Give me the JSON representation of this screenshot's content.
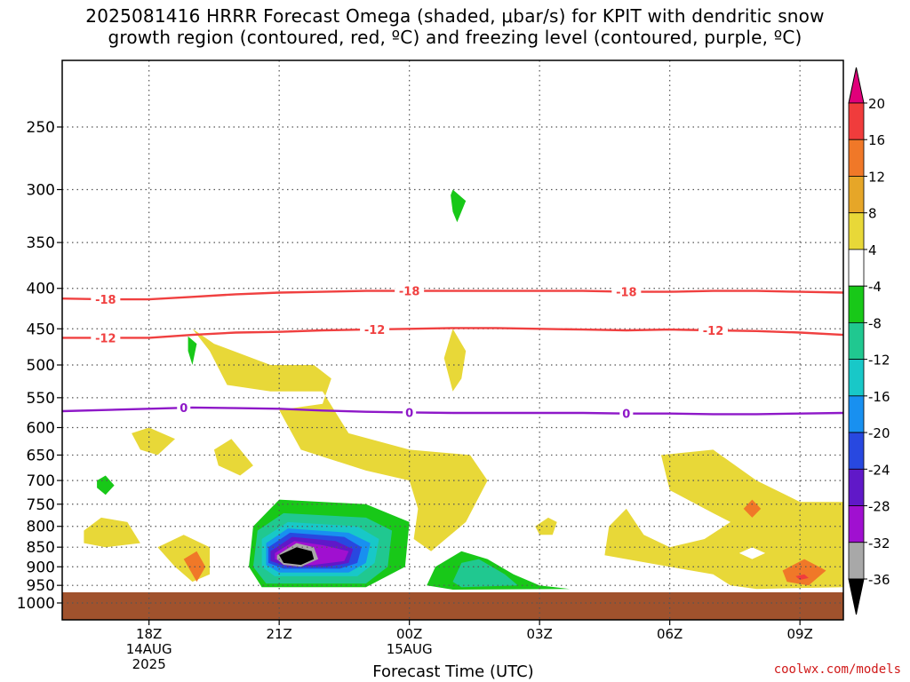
{
  "title": {
    "line1": "2025081416 HRRR Forecast Omega (shaded, μbar/s) for KPIT with dendritic snow",
    "line2": "growth region (contoured, red, ºC) and freezing level (contoured, purple, ºC)"
  },
  "credit": "coolwx.com/models",
  "chart_data": {
    "type": "heatmap",
    "xlabel": "Forecast Time (UTC)",
    "ylabel": "",
    "x_ticks": [
      {
        "hour": 18,
        "label": "18Z",
        "sub": [
          "14AUG",
          "2025"
        ]
      },
      {
        "hour": 21,
        "label": "21Z",
        "sub": []
      },
      {
        "hour": 24,
        "label": "00Z",
        "sub": [
          "15AUG"
        ]
      },
      {
        "hour": 27,
        "label": "03Z",
        "sub": []
      },
      {
        "hour": 30,
        "label": "06Z",
        "sub": []
      },
      {
        "hour": 33,
        "label": "09Z",
        "sub": []
      }
    ],
    "xlim_hours": [
      16,
      34
    ],
    "y_scale": "log-pressure",
    "ylim_mb": [
      1000,
      200
    ],
    "y_ticks": [
      250,
      300,
      350,
      400,
      450,
      500,
      550,
      600,
      650,
      700,
      750,
      800,
      850,
      900,
      950,
      1000
    ],
    "grid": true,
    "colorbar": {
      "labels": [
        "20",
        "16",
        "12",
        "8",
        "4",
        "-4",
        "-8",
        "-12",
        "-16",
        "-20",
        "-24",
        "-28",
        "-32",
        "-36"
      ],
      "colors": [
        "#e0007a",
        "#f03c3c",
        "#f07828",
        "#e6a628",
        "#e8d838",
        "#ffffff",
        "#18c818",
        "#20c890",
        "#18c8c8",
        "#1890f0",
        "#2848e0",
        "#6018c8",
        "#a010d0",
        "#a8a8a8",
        "#000000"
      ]
    },
    "contours": [
      {
        "kind": "dgz",
        "color": "#f04040",
        "label": "-18",
        "label_hours": [
          17.0,
          24.0,
          29.0
        ],
        "points": [
          [
            16,
            412
          ],
          [
            17,
            413
          ],
          [
            18,
            413
          ],
          [
            19,
            410
          ],
          [
            20,
            407
          ],
          [
            21,
            405
          ],
          [
            22,
            404
          ],
          [
            23,
            403
          ],
          [
            24,
            403
          ],
          [
            25,
            403
          ],
          [
            26,
            403
          ],
          [
            27,
            403
          ],
          [
            28,
            403
          ],
          [
            29,
            404
          ],
          [
            30,
            404
          ],
          [
            31,
            403
          ],
          [
            32,
            403
          ],
          [
            33,
            404
          ],
          [
            34,
            405
          ]
        ]
      },
      {
        "kind": "dgz",
        "color": "#f04040",
        "label": "-12",
        "label_hours": [
          17.0,
          23.2,
          31.0
        ],
        "points": [
          [
            16,
            462
          ],
          [
            17,
            462
          ],
          [
            18,
            462
          ],
          [
            19,
            458
          ],
          [
            20,
            455
          ],
          [
            21,
            454
          ],
          [
            22,
            452
          ],
          [
            23,
            451
          ],
          [
            24,
            450
          ],
          [
            25,
            449
          ],
          [
            26,
            449
          ],
          [
            27,
            450
          ],
          [
            28,
            451
          ],
          [
            29,
            452
          ],
          [
            30,
            451
          ],
          [
            31,
            452
          ],
          [
            32,
            453
          ],
          [
            33,
            455
          ],
          [
            34,
            458
          ]
        ]
      },
      {
        "kind": "freezing",
        "color": "#8e18c8",
        "label": "0",
        "label_hours": [
          18.8,
          24.0,
          29.0
        ],
        "points": [
          [
            16,
            572
          ],
          [
            17,
            570
          ],
          [
            18,
            568
          ],
          [
            19,
            566
          ],
          [
            20,
            567
          ],
          [
            21,
            568
          ],
          [
            22,
            571
          ],
          [
            23,
            573
          ],
          [
            24,
            574
          ],
          [
            25,
            575
          ],
          [
            26,
            575
          ],
          [
            27,
            575
          ],
          [
            28,
            575
          ],
          [
            29,
            576
          ],
          [
            30,
            576
          ],
          [
            31,
            577
          ],
          [
            32,
            577
          ],
          [
            33,
            576
          ],
          [
            34,
            575
          ]
        ]
      }
    ],
    "regions": [
      {
        "color": "#e8d838",
        "points": [
          [
            19.0,
            450
          ],
          [
            19.5,
            470
          ],
          [
            20.8,
            500
          ],
          [
            21.8,
            500
          ],
          [
            22.2,
            520
          ],
          [
            22.0,
            560
          ],
          [
            21.0,
            570
          ],
          [
            21.5,
            640
          ],
          [
            23.0,
            680
          ],
          [
            24.0,
            700
          ],
          [
            24.2,
            760
          ],
          [
            24.1,
            830
          ],
          [
            24.5,
            860
          ],
          [
            25.3,
            790
          ],
          [
            25.8,
            700
          ],
          [
            25.4,
            650
          ],
          [
            24.0,
            640
          ],
          [
            22.6,
            610
          ],
          [
            22.0,
            540
          ],
          [
            20.8,
            540
          ],
          [
            19.8,
            530
          ],
          [
            19.4,
            480
          ]
        ]
      },
      {
        "color": "#e8d838",
        "points": [
          [
            17.6,
            610
          ],
          [
            18.0,
            600
          ],
          [
            18.6,
            620
          ],
          [
            18.2,
            650
          ],
          [
            17.8,
            640
          ]
        ]
      },
      {
        "color": "#e8d838",
        "points": [
          [
            19.5,
            640
          ],
          [
            19.9,
            620
          ],
          [
            20.4,
            670
          ],
          [
            20.1,
            690
          ],
          [
            19.6,
            670
          ]
        ]
      },
      {
        "color": "#e8d838",
        "points": [
          [
            16.5,
            810
          ],
          [
            16.9,
            780
          ],
          [
            17.5,
            790
          ],
          [
            17.8,
            840
          ],
          [
            17.0,
            850
          ],
          [
            16.5,
            840
          ]
        ]
      },
      {
        "color": "#e8d838",
        "points": [
          [
            18.2,
            850
          ],
          [
            18.8,
            820
          ],
          [
            19.4,
            850
          ],
          [
            19.4,
            920
          ],
          [
            19.0,
            940
          ],
          [
            18.6,
            900
          ]
        ]
      },
      {
        "color": "#e8d838",
        "points": [
          [
            26.9,
            800
          ],
          [
            27.2,
            780
          ],
          [
            27.4,
            790
          ],
          [
            27.3,
            820
          ],
          [
            27.0,
            820
          ]
        ]
      },
      {
        "color": "#e8d838",
        "points": [
          [
            25.0,
            450
          ],
          [
            25.3,
            480
          ],
          [
            25.2,
            520
          ],
          [
            25.0,
            540
          ],
          [
            24.8,
            490
          ]
        ]
      },
      {
        "color": "#e8d838",
        "points": [
          [
            28.5,
            870
          ],
          [
            28.6,
            800
          ],
          [
            29.0,
            760
          ],
          [
            29.4,
            820
          ],
          [
            30.0,
            850
          ],
          [
            30.8,
            830
          ],
          [
            31.4,
            790
          ],
          [
            31.0,
            770
          ],
          [
            30.0,
            720
          ],
          [
            29.8,
            650
          ],
          [
            31.0,
            640
          ],
          [
            32.0,
            700
          ],
          [
            33.0,
            745
          ],
          [
            34.0,
            745
          ],
          [
            34.0,
            955
          ],
          [
            32.0,
            960
          ],
          [
            31.4,
            950
          ],
          [
            31.0,
            920
          ],
          [
            30.0,
            900
          ],
          [
            29.0,
            880
          ]
        ]
      },
      {
        "color": "#ffffff",
        "points": [
          [
            31.6,
            865
          ],
          [
            31.9,
            850
          ],
          [
            32.2,
            865
          ],
          [
            31.9,
            880
          ]
        ]
      },
      {
        "color": "#f07828",
        "points": [
          [
            31.7,
            760
          ],
          [
            31.9,
            740
          ],
          [
            32.1,
            760
          ],
          [
            31.9,
            780
          ]
        ]
      },
      {
        "color": "#f07828",
        "points": [
          [
            32.6,
            910
          ],
          [
            33.1,
            880
          ],
          [
            33.6,
            910
          ],
          [
            33.2,
            950
          ],
          [
            32.7,
            940
          ]
        ]
      },
      {
        "color": "#f03c3c",
        "points": [
          [
            32.9,
            925
          ],
          [
            33.1,
            920
          ],
          [
            33.2,
            930
          ],
          [
            33.0,
            935
          ]
        ]
      },
      {
        "color": "#f07828",
        "points": [
          [
            18.8,
            880
          ],
          [
            19.1,
            860
          ],
          [
            19.3,
            900
          ],
          [
            19.1,
            940
          ]
        ]
      },
      {
        "color": "#18c818",
        "points": [
          [
            20.4,
            800
          ],
          [
            21.0,
            740
          ],
          [
            23.0,
            750
          ],
          [
            24.0,
            790
          ],
          [
            23.9,
            900
          ],
          [
            23.0,
            955
          ],
          [
            20.6,
            955
          ],
          [
            20.3,
            900
          ]
        ]
      },
      {
        "color": "#20c890",
        "points": [
          [
            20.5,
            810
          ],
          [
            21.1,
            770
          ],
          [
            23.0,
            780
          ],
          [
            23.6,
            810
          ],
          [
            23.5,
            900
          ],
          [
            23.0,
            945
          ],
          [
            20.7,
            945
          ],
          [
            20.4,
            900
          ]
        ]
      },
      {
        "color": "#18c8c8",
        "points": [
          [
            20.6,
            830
          ],
          [
            21.2,
            790
          ],
          [
            22.8,
            800
          ],
          [
            23.3,
            830
          ],
          [
            23.2,
            890
          ],
          [
            22.8,
            925
          ],
          [
            20.9,
            925
          ],
          [
            20.6,
            900
          ]
        ]
      },
      {
        "color": "#1890f0",
        "points": [
          [
            20.7,
            840
          ],
          [
            21.2,
            805
          ],
          [
            22.6,
            815
          ],
          [
            23.1,
            840
          ],
          [
            23.0,
            890
          ],
          [
            22.6,
            915
          ],
          [
            21.0,
            915
          ],
          [
            20.7,
            895
          ]
        ]
      },
      {
        "color": "#2848e0",
        "points": [
          [
            20.75,
            850
          ],
          [
            21.25,
            815
          ],
          [
            22.5,
            825
          ],
          [
            22.9,
            850
          ],
          [
            22.8,
            890
          ],
          [
            22.4,
            905
          ],
          [
            21.1,
            905
          ],
          [
            20.75,
            890
          ]
        ]
      },
      {
        "color": "#6018c8",
        "points": [
          [
            20.8,
            860
          ],
          [
            21.3,
            825
          ],
          [
            22.3,
            835
          ],
          [
            22.7,
            855
          ],
          [
            22.6,
            890
          ],
          [
            22.1,
            900
          ],
          [
            21.2,
            900
          ],
          [
            20.8,
            885
          ]
        ]
      },
      {
        "color": "#a010d0",
        "points": [
          [
            20.9,
            865
          ],
          [
            21.35,
            835
          ],
          [
            22.0,
            845
          ],
          [
            22.6,
            860
          ],
          [
            22.5,
            885
          ],
          [
            21.8,
            895
          ],
          [
            21.2,
            895
          ],
          [
            20.9,
            880
          ]
        ]
      },
      {
        "color": "#a8a8a8",
        "points": [
          [
            20.95,
            870
          ],
          [
            21.4,
            840
          ],
          [
            21.8,
            850
          ],
          [
            21.9,
            880
          ],
          [
            21.5,
            900
          ],
          [
            21.1,
            895
          ],
          [
            20.95,
            880
          ]
        ]
      },
      {
        "color": "#000000",
        "points": [
          [
            21.0,
            870
          ],
          [
            21.4,
            850
          ],
          [
            21.75,
            860
          ],
          [
            21.8,
            880
          ],
          [
            21.5,
            895
          ],
          [
            21.1,
            890
          ]
        ]
      },
      {
        "color": "#18c818",
        "points": [
          [
            24.4,
            950
          ],
          [
            24.6,
            900
          ],
          [
            25.2,
            860
          ],
          [
            25.8,
            880
          ],
          [
            26.4,
            920
          ],
          [
            27.0,
            950
          ],
          [
            27.7,
            960
          ],
          [
            25.0,
            962
          ]
        ]
      },
      {
        "color": "#20c890",
        "points": [
          [
            25.0,
            940
          ],
          [
            25.2,
            890
          ],
          [
            25.6,
            880
          ],
          [
            26.2,
            920
          ],
          [
            26.5,
            950
          ],
          [
            25.2,
            955
          ]
        ]
      },
      {
        "color": "#18c818",
        "points": [
          [
            25.0,
            300
          ],
          [
            25.3,
            310
          ],
          [
            25.1,
            330
          ],
          [
            25.0,
            320
          ],
          [
            24.95,
            305
          ]
        ]
      },
      {
        "color": "#18c818",
        "points": [
          [
            18.9,
            460
          ],
          [
            19.1,
            470
          ],
          [
            19.0,
            500
          ],
          [
            18.9,
            480
          ]
        ]
      },
      {
        "color": "#18c818",
        "points": [
          [
            16.8,
            700
          ],
          [
            17.0,
            690
          ],
          [
            17.2,
            710
          ],
          [
            17.0,
            730
          ],
          [
            16.8,
            715
          ]
        ]
      }
    ]
  }
}
